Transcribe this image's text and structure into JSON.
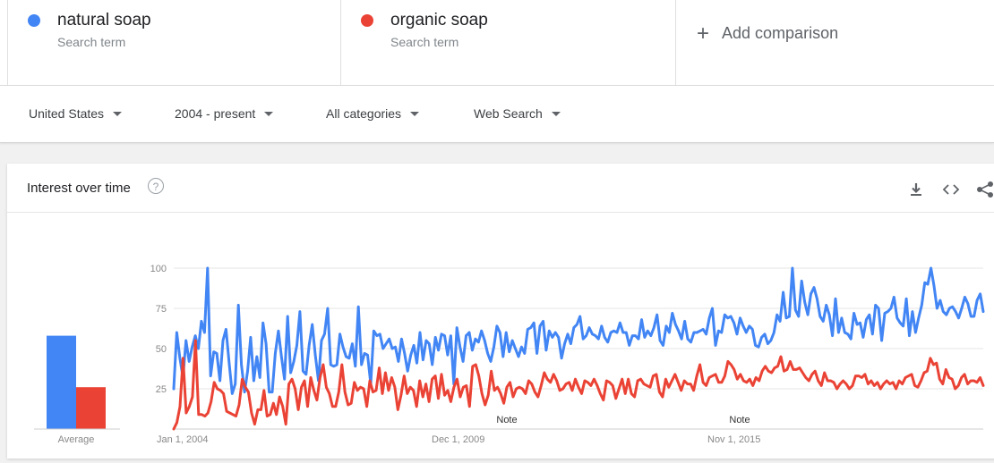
{
  "terms": [
    {
      "name": "natural soap",
      "subtitle": "Search term",
      "color": "#4285f4"
    },
    {
      "name": "organic soap",
      "subtitle": "Search term",
      "color": "#ea4335"
    }
  ],
  "add_comparison": {
    "icon": "plus-icon",
    "label": "Add comparison"
  },
  "filters": {
    "region": "United States",
    "time": "2004 - present",
    "category": "All categories",
    "property": "Web Search"
  },
  "card": {
    "title": "Interest over time",
    "help_icon": "help-circle-icon",
    "actions": [
      "download-icon",
      "embed-code-icon",
      "share-icon"
    ]
  },
  "chart_data": {
    "type": "line",
    "title": "Interest over time",
    "ylim": [
      0,
      100
    ],
    "yticks": [
      "100",
      "75",
      "50",
      "25"
    ],
    "xtick_labels": [
      "Jan 1, 2004",
      "Dec 1, 2009",
      "Nov 1, 2015"
    ],
    "x_range": [
      "Jan 2004",
      "present (monthly)"
    ],
    "notes": [
      {
        "label": "Note",
        "date": "2009"
      },
      {
        "label": "Note",
        "date": "2015"
      }
    ],
    "average": {
      "label": "Average",
      "values": [
        {
          "name": "natural soap",
          "value": 58
        },
        {
          "name": "organic soap",
          "value": 26
        }
      ]
    },
    "series": [
      {
        "name": "natural soap",
        "color": "#4285f4",
        "values": [
          25,
          60,
          44,
          32,
          55,
          42,
          51,
          58,
          50,
          67,
          60,
          100,
          33,
          48,
          47,
          30,
          55,
          62,
          41,
          22,
          28,
          77,
          40,
          23,
          36,
          57,
          30,
          45,
          32,
          66,
          53,
          23,
          23,
          47,
          61,
          45,
          31,
          70,
          35,
          42,
          52,
          73,
          36,
          34,
          52,
          65,
          46,
          30,
          55,
          59,
          75,
          40,
          39,
          40,
          59,
          51,
          45,
          44,
          53,
          39,
          76,
          40,
          47,
          46,
          28,
          61,
          58,
          59,
          50,
          53,
          56,
          50,
          51,
          42,
          56,
          47,
          36,
          46,
          52,
          41,
          60,
          43,
          55,
          53,
          40,
          57,
          49,
          59,
          58,
          46,
          58,
          28,
          63,
          51,
          42,
          58,
          60,
          49,
          56,
          54,
          61,
          55,
          47,
          42,
          51,
          64,
          60,
          45,
          60,
          48,
          55,
          50,
          45,
          51,
          47,
          62,
          63,
          66,
          47,
          64,
          67,
          49,
          61,
          57,
          60,
          57,
          44,
          53,
          59,
          53,
          63,
          65,
          70,
          56,
          58,
          63,
          59,
          58,
          56,
          64,
          57,
          54,
          60,
          61,
          60,
          66,
          60,
          60,
          52,
          58,
          58,
          56,
          68,
          57,
          61,
          58,
          63,
          71,
          55,
          52,
          64,
          60,
          72,
          65,
          61,
          56,
          67,
          56,
          54,
          60,
          60,
          61,
          62,
          59,
          69,
          75,
          52,
          61,
          60,
          71,
          69,
          70,
          66,
          59,
          69,
          64,
          60,
          64,
          62,
          52,
          51,
          57,
          59,
          53,
          55,
          60,
          71,
          67,
          85,
          69,
          70,
          100,
          74,
          70,
          92,
          79,
          71,
          84,
          88,
          81,
          70,
          67,
          77,
          71,
          58,
          81,
          60,
          69,
          60,
          59,
          56,
          72,
          65,
          66,
          57,
          68,
          71,
          59,
          77,
          75,
          55,
          72,
          73,
          75,
          82,
          69,
          66,
          64,
          81,
          58,
          73,
          60,
          69,
          77,
          91,
          90,
          100,
          89,
          75,
          80,
          73,
          71,
          75,
          76,
          73,
          69,
          75,
          82,
          78,
          70,
          70,
          80,
          84,
          73
        ]
      },
      {
        "name": "organic soap",
        "color": "#ea4335",
        "values": [
          0,
          4,
          14,
          44,
          10,
          14,
          20,
          55,
          9,
          9,
          8,
          10,
          17,
          29,
          25,
          24,
          22,
          11,
          10,
          9,
          8,
          15,
          31,
          26,
          23,
          10,
          3,
          12,
          12,
          24,
          8,
          9,
          16,
          9,
          20,
          14,
          3,
          28,
          31,
          25,
          12,
          26,
          30,
          14,
          32,
          24,
          18,
          32,
          40,
          26,
          22,
          14,
          14,
          23,
          40,
          23,
          15,
          16,
          29,
          24,
          26,
          25,
          14,
          30,
          23,
          24,
          38,
          22,
          35,
          24,
          32,
          26,
          12,
          21,
          33,
          22,
          26,
          24,
          14,
          30,
          20,
          28,
          17,
          31,
          33,
          19,
          34,
          21,
          24,
          17,
          26,
          31,
          20,
          26,
          27,
          14,
          39,
          40,
          33,
          22,
          15,
          21,
          36,
          24,
          26,
          22,
          16,
          26,
          29,
          20,
          25,
          26,
          25,
          22,
          30,
          28,
          23,
          20,
          27,
          35,
          31,
          29,
          34,
          30,
          24,
          25,
          28,
          29,
          24,
          31,
          26,
          22,
          30,
          29,
          27,
          31,
          27,
          22,
          18,
          30,
          29,
          27,
          19,
          25,
          31,
          22,
          31,
          22,
          20,
          30,
          31,
          28,
          27,
          26,
          33,
          34,
          23,
          20,
          31,
          26,
          30,
          34,
          29,
          24,
          30,
          28,
          28,
          24,
          33,
          40,
          29,
          27,
          32,
          33,
          34,
          29,
          29,
          33,
          42,
          40,
          37,
          31,
          34,
          30,
          29,
          31,
          27,
          32,
          30,
          36,
          39,
          36,
          35,
          38,
          39,
          45,
          36,
          37,
          42,
          37,
          37,
          38,
          35,
          32,
          30,
          34,
          36,
          30,
          27,
          35,
          30,
          30,
          29,
          25,
          28,
          30,
          28,
          25,
          27,
          33,
          33,
          32,
          34,
          28,
          30,
          27,
          29,
          25,
          28,
          30,
          28,
          29,
          25,
          30,
          28,
          32,
          33,
          34,
          27,
          26,
          30,
          35,
          36,
          44,
          40,
          41,
          31,
          28,
          37,
          32,
          31,
          25,
          27,
          32,
          34,
          28,
          30,
          30,
          29,
          32,
          27
        ]
      }
    ]
  }
}
